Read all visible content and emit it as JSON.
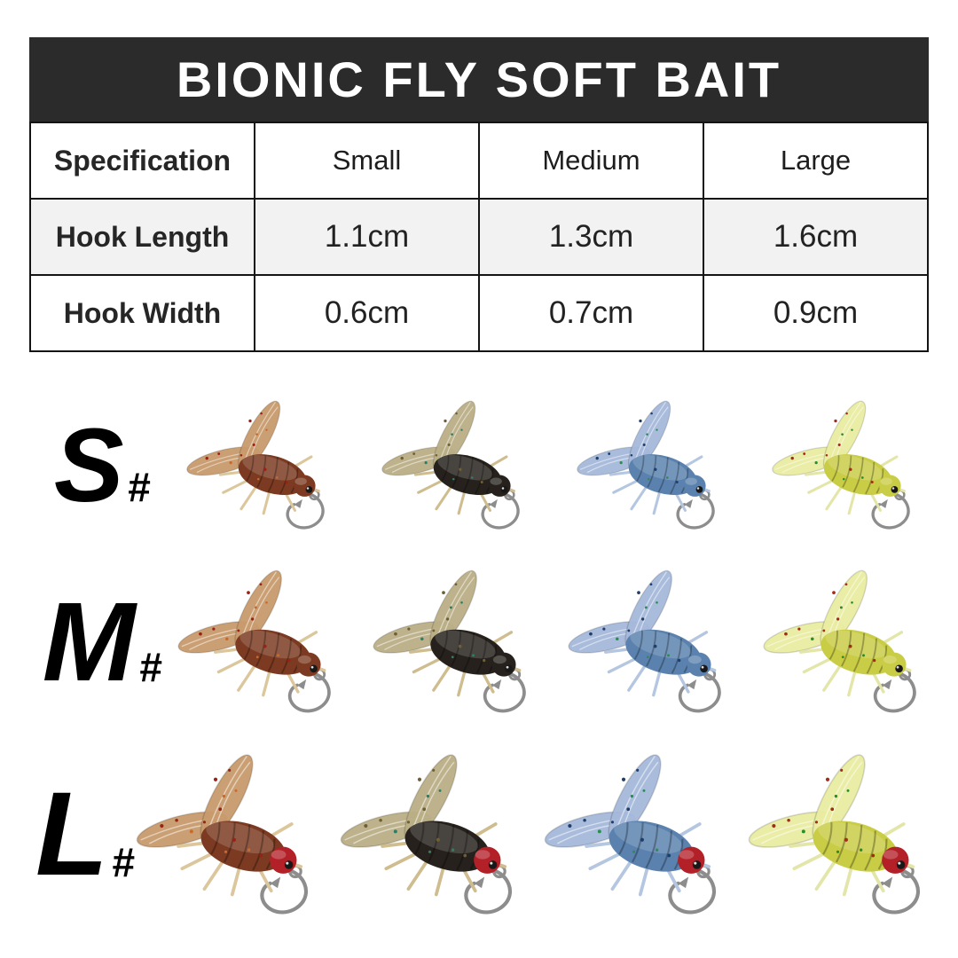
{
  "header": {
    "title": "BIONIC FLY SOFT BAIT",
    "bg_color": "#2b2b2b",
    "text_color": "#ffffff"
  },
  "spec_table": {
    "columns": [
      "Specification",
      "Small",
      "Medium",
      "Large"
    ],
    "rows": [
      {
        "label": "Hook Length",
        "values": [
          "1.1cm",
          "1.3cm",
          "1.6cm"
        ]
      },
      {
        "label": "Hook Width",
        "values": [
          "0.6cm",
          "0.7cm",
          "0.9cm"
        ]
      }
    ],
    "alt_row_color": "#f2f2f2",
    "border_color": "#141414"
  },
  "size_rows": [
    {
      "letter": "S",
      "suffix": "#",
      "scale": 0.9,
      "head_color": null
    },
    {
      "letter": "M",
      "suffix": "#",
      "scale": 1.0,
      "head_color": null
    },
    {
      "letter": "L",
      "suffix": "#",
      "scale": 1.12,
      "head_color": "#b32028"
    }
  ],
  "color_variants": [
    {
      "name": "brown fly",
      "wing": "#c79a6b",
      "body": "#7b3a21",
      "leg": "#dcc69c",
      "speckle1": "#9e1f14",
      "speckle2": "#c96a2a"
    },
    {
      "name": "black fly",
      "wing": "#b9ae85",
      "body": "#26211c",
      "leg": "#cfbd8f",
      "speckle1": "#6f5f33",
      "speckle2": "#2e7d64"
    },
    {
      "name": "blue fly",
      "wing": "#a5b8da",
      "body": "#5b82ae",
      "leg": "#b4c6e0",
      "speckle1": "#1e3f6d",
      "speckle2": "#2e8b57"
    },
    {
      "name": "yellow fly",
      "wing": "#e9eca0",
      "body": "#c9cc45",
      "leg": "#e3e6a8",
      "speckle1": "#a52a1a",
      "speckle2": "#2a8c2a"
    }
  ],
  "hook_color": "#8d8d8d",
  "fly_base_width": 205
}
